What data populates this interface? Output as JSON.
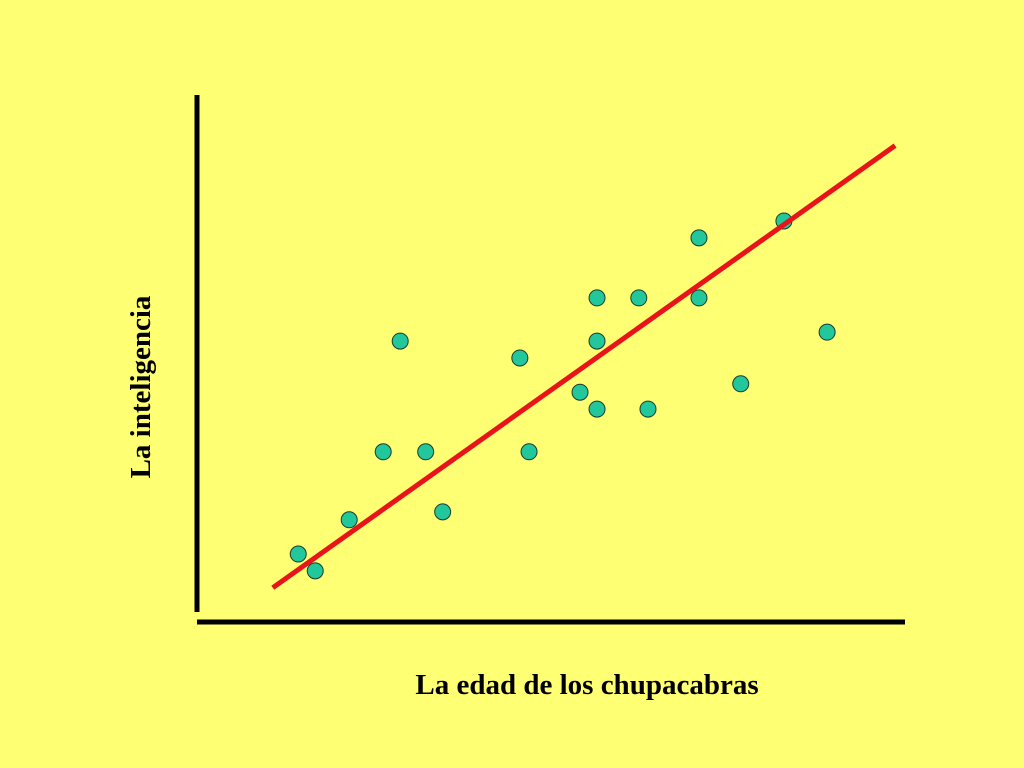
{
  "chart_data": {
    "type": "scatter",
    "x_label": "La edad de los chupacabras",
    "y_label": "La inteligencia",
    "x": [
      14.3,
      16.7,
      21.5,
      26.3,
      28.7,
      32.3,
      34.7,
      45.6,
      46.9,
      54.1,
      56.5,
      56.5,
      56.5,
      62.4,
      63.7,
      70.9,
      70.9,
      76.8,
      82.9,
      89.0
    ],
    "y": [
      12.9,
      9.7,
      19.4,
      32.3,
      53.3,
      32.3,
      20.9,
      50.1,
      32.3,
      43.6,
      61.5,
      53.3,
      40.4,
      61.5,
      40.4,
      72.9,
      61.5,
      45.2,
      76.1,
      55.0
    ],
    "color": "#22c79c",
    "trend_line": {
      "x": [
        10.7,
        98.6
      ],
      "y": [
        6.5,
        90.4
      ],
      "color": "#e8141a"
    },
    "xlim": [
      0,
      100
    ],
    "ylim": [
      0,
      100
    ]
  }
}
